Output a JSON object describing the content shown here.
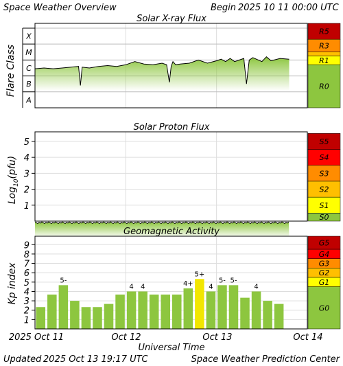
{
  "header": {
    "title": "Space Weather Overview",
    "begin_label": "Begin",
    "begin_date": "2025 10 11 00:00 UTC"
  },
  "footer": {
    "updated_label": "Updated",
    "updated_date": "2025 Oct 13 19:17 UTC",
    "center": "Space Weather Prediction Center"
  },
  "x_axis": {
    "label": "Universal Time",
    "ticks": [
      "2025 Oct 11",
      "Oct 12",
      "Oct 13",
      "Oct 14"
    ],
    "range_days": [
      0,
      3
    ]
  },
  "colors": {
    "data_green": "#8dc63f",
    "kp_yellow": "#f2e600",
    "scale_red_dark": "#c00000",
    "scale_red": "#ff0000",
    "scale_orange": "#ff8c00",
    "scale_amber": "#ffbf00",
    "scale_yellow": "#ffff00",
    "scale_green": "#8dc63f"
  },
  "chart_data": [
    {
      "type": "area",
      "title": "Solar X-ray Flux",
      "ylabel": "Flare Class",
      "y_categories": [
        "A",
        "B",
        "C",
        "M",
        "X"
      ],
      "ylim_class_units": [
        0,
        5.3
      ],
      "scale_levels": [
        "R5",
        "R3",
        "R1",
        "R0"
      ],
      "x_days": [
        0,
        0.1,
        0.2,
        0.3,
        0.4,
        0.48,
        0.5,
        0.52,
        0.6,
        0.7,
        0.8,
        0.9,
        1.0,
        1.1,
        1.2,
        1.3,
        1.4,
        1.45,
        1.48,
        1.5,
        1.52,
        1.55,
        1.6,
        1.7,
        1.8,
        1.9,
        2.0,
        2.05,
        2.1,
        2.15,
        2.2,
        2.3,
        2.33,
        2.36,
        2.4,
        2.5,
        2.55,
        2.6,
        2.7,
        2.8
      ],
      "y_class_units": [
        2.45,
        2.5,
        2.45,
        2.5,
        2.55,
        2.6,
        1.4,
        2.55,
        2.5,
        2.6,
        2.65,
        2.6,
        2.7,
        2.9,
        2.75,
        2.7,
        2.8,
        2.7,
        1.6,
        2.6,
        2.9,
        2.7,
        2.75,
        2.8,
        3.0,
        2.8,
        2.95,
        3.05,
        2.9,
        3.1,
        2.9,
        3.1,
        1.5,
        3.0,
        3.15,
        2.9,
        3.2,
        2.95,
        3.1,
        3.05
      ]
    },
    {
      "type": "area",
      "title": "Solar Proton Flux",
      "ylabel": "Log10(pfu)",
      "yticks": [
        1,
        2,
        3,
        4,
        5
      ],
      "ylim": [
        0,
        5.6
      ],
      "scale_levels": [
        "S5",
        "S4",
        "S3",
        "S2",
        "S1",
        "S0"
      ],
      "x_days": [
        0,
        0.5,
        1.0,
        1.5,
        2.0,
        2.5,
        2.8
      ],
      "y_values": [
        -0.1,
        -0.1,
        -0.1,
        -0.1,
        -0.1,
        -0.1,
        -0.1
      ]
    },
    {
      "type": "bar",
      "title": "Geomagnetic Activity",
      "ylabel": "Kp index",
      "yticks": [
        1,
        2,
        3,
        4,
        5,
        6,
        7,
        8,
        9
      ],
      "ylim": [
        0,
        9.9
      ],
      "scale_levels": [
        "G5",
        "G4",
        "G3",
        "G2",
        "G1",
        "G0"
      ],
      "bar_width_days": 0.125,
      "values": [
        2.33,
        3.67,
        4.67,
        3.0,
        2.33,
        2.33,
        2.67,
        3.67,
        4.0,
        4.0,
        3.67,
        3.67,
        3.67,
        4.33,
        5.33,
        4.0,
        4.67,
        4.67,
        3.33,
        4.0,
        3.0,
        2.67
      ],
      "labels": [
        "",
        "",
        "5-",
        "",
        "",
        "",
        "",
        "",
        "4",
        "4",
        "",
        "",
        "",
        "4+",
        "5+",
        "4",
        "5-",
        "5-",
        "",
        "4",
        "",
        ""
      ]
    }
  ]
}
